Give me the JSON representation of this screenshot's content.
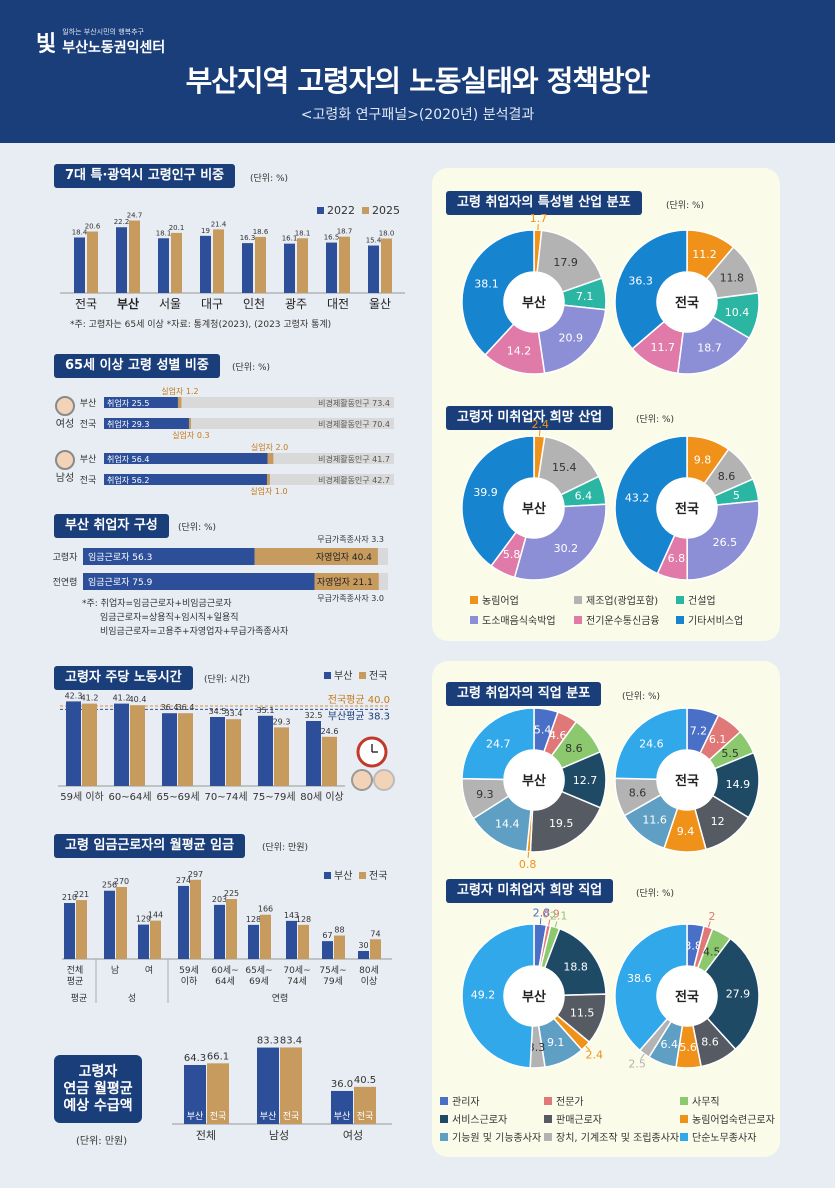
{
  "header": {
    "logo_tagline": "일하는 부산시민의 행복추구",
    "logo_name": "부산노동권익센터",
    "logo_mark": "빛",
    "title": "부산지역 고령자의 노동실태와 정책방안",
    "subtitle": "<고령화 연구패널>(2020년) 분석결과"
  },
  "colors": {
    "navy": "#1a3e7a",
    "busan": "#2d4f9a",
    "national": "#c79a5e",
    "gray_bar": "#d9d9d9",
    "orange": "#f0921a"
  },
  "section1": {
    "title": "7대 특·광역시 고령인구 비중",
    "unit": "(단위: %)",
    "note": "*주: 고령자는 65세 이상 *자료: 통계청(2023), (2023 고령자 통계)"
  },
  "section2": {
    "title": "65세 이상 고령 성별 비중",
    "unit": "(단위: %)",
    "female_label": "여성",
    "male_label": "남성",
    "employed_prefix": "취업자",
    "unemployed_prefix": "실업자",
    "inactive_prefix": "비경제활동인구",
    "rows": [
      {
        "gender": "female",
        "region": "부산",
        "employed": 25.5,
        "unemployed": 1.2,
        "inactive": 73.4
      },
      {
        "gender": "female",
        "region": "전국",
        "employed": 29.3,
        "unemployed": 0.3,
        "inactive": 70.4
      },
      {
        "gender": "male",
        "region": "부산",
        "employed": 56.4,
        "unemployed": 2.0,
        "inactive": 41.7
      },
      {
        "gender": "male",
        "region": "전국",
        "employed": 56.2,
        "unemployed": 1.0,
        "inactive": 42.7
      }
    ]
  },
  "section3": {
    "title": "부산 취업자 구성",
    "unit": "(단위: %)",
    "rows": [
      {
        "label": "고령자",
        "wage": 56.3,
        "self": 40.4,
        "family": 3.3
      },
      {
        "label": "전연령",
        "wage": 75.9,
        "self": 21.1,
        "family": 3.0
      }
    ],
    "wage_prefix": "임금근로자",
    "self_prefix": "자영업자",
    "family_prefix": "무급가족종사자",
    "notes": [
      "*주: 취업자=임금근로자+비임금근로자",
      "임금근로자=상용직+임시직+일용직",
      "비임금근로자=고용주+자영업자+무급가족종사자"
    ]
  },
  "section4": {
    "title": "고령자 주당 노동시간",
    "unit": "(단위: 시간)",
    "national_avg_label": "전국평균 40.0",
    "busan_avg_label": "부산평균 38.3"
  },
  "section5": {
    "title": "고령 임금근로자의 월평균 임금",
    "unit": "(단위: 만원)",
    "group_labels": [
      "전체\n평균",
      "성",
      "연령"
    ]
  },
  "section6": {
    "title_lines": [
      "고령자",
      "연금 월평균",
      "예상 수급액"
    ],
    "unit": "(단위: 만원)",
    "inbar_busan": "부산",
    "inbar_national": "전국"
  },
  "right1": {
    "title": "고령 취업자의 특성별 산업 분포",
    "unit": "(단위: %)"
  },
  "right2": {
    "title": "고령자 미취업자 희망 산업",
    "unit": "(단위: %)",
    "legend": [
      {
        "label": "농림어업",
        "color": "#f0921a"
      },
      {
        "label": "제조업(광업포함)",
        "color": "#b3b3b3"
      },
      {
        "label": "건설업",
        "color": "#2bb5a3"
      },
      {
        "label": "도소매음식숙박업",
        "color": "#8c8fd6"
      },
      {
        "label": "전기운수통신금융",
        "color": "#e07aa8"
      },
      {
        "label": "기타서비스업",
        "color": "#1784d0"
      }
    ]
  },
  "right3": {
    "title": "고령 취업자의 직업 분포",
    "unit": "(단위: %)"
  },
  "right4": {
    "title": "고령자 미취업자 희망 직업",
    "unit": "(단위: %)",
    "legend": [
      {
        "label": "관리자",
        "color": "#4a6fc7"
      },
      {
        "label": "전문가",
        "color": "#e07878"
      },
      {
        "label": "사무직",
        "color": "#8cc86e"
      },
      {
        "label": "서비스근로자",
        "color": "#1f4a66"
      },
      {
        "label": "판매근로자",
        "color": "#555a63"
      },
      {
        "label": "농림어업숙련근로자",
        "color": "#f0921a"
      },
      {
        "label": "기능원 및 기능종사자",
        "color": "#5f9fc4"
      },
      {
        "label": "장치, 기계조작 및 조립종사자",
        "color": "#b3b3b3"
      },
      {
        "label": "단순노무종사자",
        "color": "#30a8ea"
      }
    ]
  },
  "chart_data": [
    {
      "type": "bar",
      "title": "7대 특·광역시 고령인구 비중",
      "categories": [
        "전국",
        "부산",
        "서울",
        "대구",
        "인천",
        "광주",
        "대전",
        "울산"
      ],
      "series": [
        {
          "name": "2022",
          "values": [
            18.4,
            22.2,
            18.1,
            19,
            16.3,
            16.1,
            16.5,
            15.4
          ]
        },
        {
          "name": "2025",
          "values": [
            20.6,
            24.7,
            20.1,
            21.4,
            18.6,
            18.1,
            18.7,
            18.0
          ]
        }
      ],
      "value_labels": [
        [
          "18.4",
          "22.2",
          "18.1",
          "19",
          "16.3",
          "16.1",
          "16.5",
          "15.4"
        ],
        [
          "20.6",
          "24.7",
          "20.1",
          "21.4",
          "18.6",
          "18.1",
          "18.7",
          "18.0"
        ]
      ],
      "ylim": [
        0,
        26
      ]
    },
    {
      "type": "bar",
      "title": "고령자 주당 노동시간",
      "categories": [
        "59세 이하",
        "60~64세",
        "65~69세",
        "70~74세",
        "75~79세",
        "80세 이상"
      ],
      "series": [
        {
          "name": "부산",
          "values": [
            42.3,
            41.2,
            36.4,
            34.5,
            35.1,
            32.5
          ]
        },
        {
          "name": "전국",
          "values": [
            41.2,
            40.4,
            36.4,
            33.4,
            29.3,
            24.6
          ]
        }
      ],
      "averages": {
        "national": 40.0,
        "busan": 38.3
      },
      "ylim": [
        0,
        44
      ]
    },
    {
      "type": "bar",
      "title": "고령 임금근로자의 월평균 임금",
      "categories": [
        "전체평균",
        "남",
        "여",
        "59세 이하",
        "60세~64세",
        "65세~69세",
        "70세~74세",
        "75세~79세",
        "80세 이상"
      ],
      "series": [
        {
          "name": "부산",
          "values": [
            210,
            256,
            129,
            274,
            203,
            128,
            143,
            67,
            30
          ]
        },
        {
          "name": "전국",
          "values": [
            221,
            270,
            144,
            297,
            225,
            166,
            128,
            88,
            74
          ]
        }
      ],
      "ylim": [
        0,
        300
      ]
    },
    {
      "type": "bar",
      "title": "고령자 연금 월평균 예상 수급액",
      "categories": [
        "전체",
        "남성",
        "여성"
      ],
      "series": [
        {
          "name": "부산",
          "values": [
            64.3,
            83.3,
            36.0
          ]
        },
        {
          "name": "전국",
          "values": [
            66.1,
            83.4,
            40.5
          ]
        }
      ],
      "value_labels": [
        [
          "64.3",
          "83.3",
          "36.0"
        ],
        [
          "66.1",
          "83.4",
          "40.5"
        ]
      ],
      "ylim": [
        0,
        85
      ]
    },
    {
      "type": "pie",
      "title": "고령 취업자의 특성별 산업 분포",
      "region_labels": [
        "부산",
        "전국"
      ],
      "categories": [
        "농림어업",
        "제조업(광업포함)",
        "건설업",
        "도소매음식숙박업",
        "전기운수통신금융",
        "기타서비스업"
      ],
      "series": [
        {
          "name": "부산",
          "values": [
            1.7,
            17.9,
            7.1,
            20.9,
            14.2,
            38.1
          ]
        },
        {
          "name": "전국",
          "values": [
            11.2,
            11.8,
            10.4,
            18.7,
            11.7,
            36.3
          ]
        }
      ]
    },
    {
      "type": "pie",
      "title": "고령자 미취업자 희망 산업",
      "region_labels": [
        "부산",
        "전국"
      ],
      "categories": [
        "농림어업",
        "제조업(광업포함)",
        "건설업",
        "도소매음식숙박업",
        "전기운수통신금융",
        "기타서비스업"
      ],
      "series": [
        {
          "name": "부산",
          "values": [
            2.4,
            15.4,
            6.4,
            30.2,
            5.8,
            39.9
          ]
        },
        {
          "name": "전국",
          "values": [
            9.8,
            8.6,
            5.0,
            26.5,
            6.8,
            43.2
          ]
        }
      ]
    },
    {
      "type": "pie",
      "title": "고령 취업자의 직업 분포",
      "region_labels": [
        "부산",
        "전국"
      ],
      "categories": [
        "관리자",
        "전문가",
        "사무직",
        "서비스근로자",
        "판매근로자",
        "농림어업숙련근로자",
        "기능원 및 기능종사자",
        "장치, 기계조작 및 조립종사자",
        "단순노무종사자"
      ],
      "series": [
        {
          "name": "부산",
          "values": [
            5.4,
            4.6,
            8.6,
            12.7,
            19.5,
            0.8,
            14.4,
            9.3,
            24.7
          ]
        },
        {
          "name": "전국",
          "values": [
            7.2,
            6.1,
            5.5,
            14.9,
            12.0,
            9.4,
            11.6,
            8.6,
            24.6
          ]
        }
      ]
    },
    {
      "type": "pie",
      "title": "고령자 미취업자 희망 직업",
      "region_labels": [
        "부산",
        "전국"
      ],
      "categories": [
        "관리자",
        "전문가",
        "사무직",
        "서비스근로자",
        "판매근로자",
        "농림어업숙련근로자",
        "기능원 및 기능종사자",
        "장치, 기계조작 및 조립종사자",
        "단순노무종사자"
      ],
      "series": [
        {
          "name": "부산",
          "values": [
            2.8,
            0.9,
            2.1,
            18.8,
            11.5,
            2.4,
            9.1,
            3.3,
            49.2
          ]
        },
        {
          "name": "전국",
          "values": [
            3.8,
            2,
            4.5,
            27.9,
            8.6,
            5.6,
            6.4,
            2.5,
            38.6
          ]
        }
      ]
    }
  ]
}
